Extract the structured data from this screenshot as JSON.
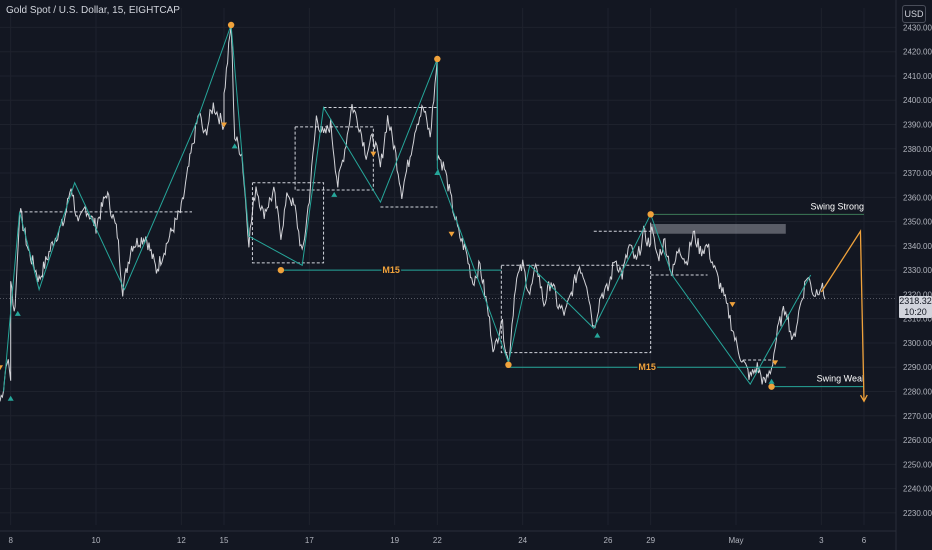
{
  "header": {
    "symbol_title": "Gold Spot / U.S. Dollar, 15, EIGHTCAP",
    "currency": "USD"
  },
  "last_price": {
    "value": "2318.32",
    "countdown": "10:20"
  },
  "colors": {
    "background": "#131722",
    "candles": "#e8e8ec",
    "structure": "#26a69a",
    "dashed_box": "#d1d4dc",
    "orange": "#f0a23b",
    "grid": "#1e222d",
    "axis_text": "#b2b5be"
  },
  "chart_data": {
    "type": "line",
    "ylim": [
      2225,
      2438
    ],
    "x_range": [
      "Apr 5 18:00",
      "May 6 18:00"
    ],
    "y_axis_ticks": [
      "2230.00",
      "2240.00",
      "2250.00",
      "2260.00",
      "2270.00",
      "2280.00",
      "2290.00",
      "2300.00",
      "2310.00",
      "2320.00",
      "2330.00",
      "2340.00",
      "2350.00",
      "2360.00",
      "2370.00",
      "2380.00",
      "2390.00",
      "2400.00",
      "2410.00",
      "2420.00",
      "2430.00"
    ],
    "x_axis_labels": [
      {
        "t": "8",
        "x": "Apr 8 00:00"
      },
      {
        "t": "10",
        "x": "Apr 10 00:00"
      },
      {
        "t": "12",
        "x": "Apr 12 00:00"
      },
      {
        "t": "15",
        "x": "Apr 15 00:00"
      },
      {
        "t": "17",
        "x": "Apr 17 00:00"
      },
      {
        "t": "19",
        "x": "Apr 19 00:00"
      },
      {
        "t": "22",
        "x": "Apr 22 00:00"
      },
      {
        "t": "24",
        "x": "Apr 24 00:00"
      },
      {
        "t": "26",
        "x": "Apr 26 00:00"
      },
      {
        "t": "29",
        "x": "Apr 29 00:00"
      },
      {
        "t": "May",
        "x": "May 1 00:00"
      },
      {
        "t": "3",
        "x": "May 3 00:00"
      },
      {
        "t": "6",
        "x": "May 6 00:00"
      }
    ],
    "price_path": [
      [
        "Apr 5 18:00",
        2276
      ],
      [
        "Apr 5 20:00",
        2282
      ],
      [
        "Apr 5 22:00",
        2294
      ],
      [
        "Apr 6 00:00",
        2285
      ],
      [
        "Apr 7 22:00",
        2305
      ],
      [
        "Apr 8 00:00",
        2328
      ],
      [
        "Apr 8 02:00",
        2312
      ],
      [
        "Apr 8 03:00",
        2322
      ],
      [
        "Apr 8 05:00",
        2355
      ],
      [
        "Apr 8 10:00",
        2338
      ],
      [
        "Apr 8 16:00",
        2326
      ],
      [
        "Apr 9 00:00",
        2342
      ],
      [
        "Apr 9 06:00",
        2350
      ],
      [
        "Apr 9 10:00",
        2365
      ],
      [
        "Apr 9 14:00",
        2348
      ],
      [
        "Apr 9 18:00",
        2356
      ],
      [
        "Apr 10 00:00",
        2348
      ],
      [
        "Apr 10 06:00",
        2362
      ],
      [
        "Apr 10 12:00",
        2345
      ],
      [
        "Apr 10 15:00",
        2322
      ],
      [
        "Apr 10 20:00",
        2340
      ],
      [
        "Apr 11 04:00",
        2344
      ],
      [
        "Apr 11 10:00",
        2330
      ],
      [
        "Apr 11 18:00",
        2345
      ],
      [
        "Apr 12 00:00",
        2355
      ],
      [
        "Apr 12 06:00",
        2380
      ],
      [
        "Apr 12 10:00",
        2395
      ],
      [
        "Apr 12 13:00",
        2385
      ],
      [
        "Apr 12 18:00",
        2398
      ],
      [
        "Apr 12 22:00",
        2392
      ],
      [
        "Apr 13 02:00",
        2390
      ],
      [
        "Apr 15 00:00",
        2402
      ],
      [
        "Apr 15 04:00",
        2431
      ],
      [
        "Apr 15 06:00",
        2385
      ],
      [
        "Apr 15 10:00",
        2378
      ],
      [
        "Apr 15 14:00",
        2342
      ],
      [
        "Apr 15 18:00",
        2365
      ],
      [
        "Apr 15 22:00",
        2353
      ],
      [
        "Apr 16 04:00",
        2362
      ],
      [
        "Apr 16 08:00",
        2345
      ],
      [
        "Apr 16 12:00",
        2362
      ],
      [
        "Apr 16 16:00",
        2355
      ],
      [
        "Apr 16 20:00",
        2336
      ],
      [
        "Apr 17 00:00",
        2360
      ],
      [
        "Apr 17 04:00",
        2393
      ],
      [
        "Apr 17 08:00",
        2385
      ],
      [
        "Apr 17 12:00",
        2390
      ],
      [
        "Apr 17 16:00",
        2365
      ],
      [
        "Apr 17 20:00",
        2380
      ],
      [
        "Apr 18 00:00",
        2398
      ],
      [
        "Apr 18 04:00",
        2390
      ],
      [
        "Apr 18 08:00",
        2378
      ],
      [
        "Apr 18 12:00",
        2385
      ],
      [
        "Apr 18 16:00",
        2372
      ],
      [
        "Apr 18 20:00",
        2393
      ],
      [
        "Apr 19 00:00",
        2380
      ],
      [
        "Apr 19 04:00",
        2362
      ],
      [
        "Apr 19 08:00",
        2375
      ],
      [
        "Apr 19 12:00",
        2390
      ],
      [
        "Apr 19 16:00",
        2397
      ],
      [
        "Apr 19 20:00",
        2385
      ],
      [
        "Apr 20 00:00",
        2417
      ],
      [
        "Apr 20 04:00",
        2395
      ],
      [
        "Apr 20 08:00",
        2388
      ],
      [
        "Apr 20 12:00",
        2392
      ],
      [
        "Apr 20 16:00",
        2378
      ],
      [
        "Apr 21 00:00",
        2385
      ],
      [
        "Apr 21 04:00",
        2398
      ],
      [
        "Apr 21 08:00",
        2392
      ],
      [
        "Apr 21 12:00",
        2380
      ],
      [
        "Apr 21 16:00",
        2385
      ],
      [
        "Apr 22 00:00",
        2378
      ],
      [
        "Apr 22 04:00",
        2372
      ],
      [
        "Apr 22 08:00",
        2358
      ],
      [
        "Apr 22 12:00",
        2345
      ],
      [
        "Apr 22 16:00",
        2338
      ],
      [
        "Apr 22 20:00",
        2325
      ],
      [
        "Apr 23 00:00",
        2332
      ],
      [
        "Apr 23 04:00",
        2315
      ],
      [
        "Apr 23 08:00",
        2296
      ],
      [
        "Apr 23 12:00",
        2310
      ],
      [
        "Apr 23 16:00",
        2291
      ],
      [
        "Apr 23 20:00",
        2325
      ],
      [
        "Apr 24 00:00",
        2332
      ],
      [
        "Apr 24 04:00",
        2320
      ],
      [
        "Apr 24 08:00",
        2332
      ],
      [
        "Apr 24 12:00",
        2316
      ],
      [
        "Apr 24 16:00",
        2326
      ],
      [
        "Apr 24 20:00",
        2315
      ],
      [
        "Apr 25 00:00",
        2312
      ],
      [
        "Apr 25 04:00",
        2322
      ],
      [
        "Apr 25 08:00",
        2332
      ],
      [
        "Apr 25 12:00",
        2325
      ],
      [
        "Apr 25 16:00",
        2306
      ],
      [
        "Apr 25 20:00",
        2320
      ],
      [
        "Apr 26 00:00",
        2322
      ],
      [
        "Apr 26 04:00",
        2335
      ],
      [
        "Apr 26 08:00",
        2328
      ],
      [
        "Apr 26 12:00",
        2340
      ],
      [
        "Apr 26 16:00",
        2333
      ],
      [
        "Apr 26 20:00",
        2345
      ],
      [
        "Apr 27 00:00",
        2340
      ],
      [
        "Apr 27 04:00",
        2352
      ],
      [
        "Apr 27 08:00",
        2343
      ],
      [
        "Apr 29 00:00",
        2348
      ],
      [
        "Apr 29 04:00",
        2335
      ],
      [
        "Apr 29 08:00",
        2342
      ],
      [
        "Apr 29 12:00",
        2328
      ],
      [
        "Apr 29 16:00",
        2340
      ],
      [
        "Apr 29 20:00",
        2333
      ],
      [
        "Apr 30 00:00",
        2345
      ],
      [
        "Apr 30 04:00",
        2338
      ],
      [
        "Apr 30 08:00",
        2340
      ],
      [
        "Apr 30 12:00",
        2330
      ],
      [
        "Apr 30 16:00",
        2322
      ],
      [
        "Apr 30 20:00",
        2312
      ],
      [
        "May 1 00:00",
        2300
      ],
      [
        "May 1 04:00",
        2292
      ],
      [
        "May 1 08:00",
        2286
      ],
      [
        "May 1 12:00",
        2290
      ],
      [
        "May 1 16:00",
        2283
      ],
      [
        "May 1 20:00",
        2290
      ],
      [
        "May 2 00:00",
        2307
      ],
      [
        "May 2 04:00",
        2315
      ],
      [
        "May 2 08:00",
        2300
      ],
      [
        "May 2 12:00",
        2315
      ],
      [
        "May 2 16:00",
        2328
      ],
      [
        "May 2 20:00",
        2320
      ],
      [
        "May 3 00:00",
        2324
      ],
      [
        "May 3 02:00",
        2318
      ]
    ],
    "zigzag": [
      [
        "Apr 5 20:00",
        2280
      ],
      [
        "Apr 8 05:00",
        2354
      ],
      [
        "Apr 8 16:00",
        2322
      ],
      [
        "Apr 9 12:00",
        2366
      ],
      [
        "Apr 10 16:00",
        2322
      ],
      [
        "Apr 12 08:00",
        2390
      ],
      [
        "Apr 15 04:00",
        2431
      ],
      [
        "Apr 15 14:00",
        2344
      ],
      [
        "Apr 16 20:00",
        2332
      ],
      [
        "Apr 17 08:00",
        2397
      ],
      [
        "Apr 18 16:00",
        2358
      ],
      [
        "Apr 20 00:00",
        2417
      ],
      [
        "Apr 21 20:00",
        2372
      ],
      [
        "Apr 23 16:00",
        2292
      ],
      [
        "Apr 24 04:00",
        2332
      ],
      [
        "Apr 25 16:00",
        2306
      ],
      [
        "Apr 27 04:00",
        2353
      ],
      [
        "Apr 29 12:00",
        2328
      ],
      [
        "May 1 08:00",
        2283
      ],
      [
        "May 2 18:00",
        2328
      ]
    ],
    "box_levels": [
      {
        "x0": "Apr 8 05:00",
        "x1": "Apr 12 06:00",
        "y0": 2354,
        "y1": 2354
      },
      {
        "x0": "Apr 15 16:00",
        "x1": "Apr 17 08:00",
        "y0": 2366,
        "y1": 2333
      },
      {
        "x0": "Apr 16 16:00",
        "x1": "Apr 18 12:00",
        "y0": 2389,
        "y1": 2363
      },
      {
        "x0": "Apr 17 08:00",
        "x1": "Apr 20 00:00",
        "y0": 2397,
        "y1": 2397
      },
      {
        "x0": "Apr 18 16:00",
        "x1": "Apr 21 20:00",
        "y0": 2356,
        "y1": 2356
      },
      {
        "x0": "Apr 23 12:00",
        "x1": "Apr 27 00:00",
        "y0": 2332,
        "y1": 2296
      },
      {
        "x0": "Apr 25 16:00",
        "x1": "Apr 27 04:00",
        "y0": 2346,
        "y1": 2346
      },
      {
        "x0": "Apr 27 04:00",
        "x1": "Apr 30 08:00",
        "y0": 2328,
        "y1": 2328
      },
      {
        "x0": "May 1 04:00",
        "x1": "May 1 20:00",
        "y0": 2293,
        "y1": 2293
      }
    ],
    "m15_lines": [
      {
        "label": "M15",
        "x0": "Apr 16 08:00",
        "x1": "Apr 23 12:00",
        "y": 2330
      },
      {
        "label": "M15",
        "x0": "Apr 23 16:00",
        "x1": "May 2 04:00",
        "y": 2290
      }
    ],
    "swing_strong": {
      "label": "Swing Strong",
      "x0": "Apr 27 04:00",
      "x1": "May 5 12:00",
      "y": 2353
    },
    "swing_weak": {
      "label": "Swing Weal",
      "x0": "May 1 20:00",
      "x1": "May 5 18:00",
      "y": 2282
    },
    "supply_zone": {
      "x0": "Apr 28 00:00",
      "x1": "May 2 04:00",
      "y0": 2349,
      "y1": 2345
    },
    "projection": [
      [
        "May 3 00:00",
        2321
      ],
      [
        "May 3 22:00",
        2346
      ],
      [
        "May 4 12:00",
        2276
      ]
    ],
    "swing_points": [
      {
        "x": "Apr 15 04:00",
        "y": 2431
      },
      {
        "x": "Apr 20 00:00",
        "y": 2417
      },
      {
        "x": "Apr 16 08:00",
        "y": 2330
      },
      {
        "x": "Apr 27 04:00",
        "y": 2353
      },
      {
        "x": "Apr 23 16:00",
        "y": 2291
      },
      {
        "x": "May 1 20:00",
        "y": 2282
      }
    ],
    "markers_up": [
      {
        "x": "Apr 6 02:00",
        "y": 2277
      },
      {
        "x": "Apr 8 04:00",
        "y": 2312
      },
      {
        "x": "Apr 15 06:00",
        "y": 2381
      },
      {
        "x": "Apr 17 14:00",
        "y": 2361
      },
      {
        "x": "Apr 21 10:00",
        "y": 2370
      },
      {
        "x": "Apr 25 18:00",
        "y": 2303
      },
      {
        "x": "May 1 20:00",
        "y": 2284
      }
    ],
    "markers_down": [
      {
        "x": "Apr 5 18:00",
        "y": 2290
      },
      {
        "x": "Apr 14 22:00",
        "y": 2390
      },
      {
        "x": "Apr 18 12:00",
        "y": 2378
      },
      {
        "x": "Apr 22 08:00",
        "y": 2345
      },
      {
        "x": "Apr 30 22:00",
        "y": 2316
      },
      {
        "x": "May 1 22:00",
        "y": 2292
      }
    ]
  }
}
